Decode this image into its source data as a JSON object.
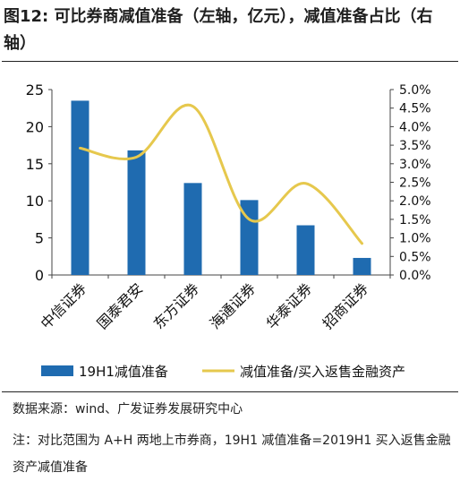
{
  "header": {
    "figure_label": "图12:",
    "title": "可比券商减值准备（左轴，亿元），减值准备占比（右轴）"
  },
  "chart_data": {
    "type": "bar",
    "categories": [
      "中信证券",
      "国泰君安",
      "东方证券",
      "海通证券",
      "华泰证券",
      "招商证券"
    ],
    "series": [
      {
        "name": "19H1减值准备",
        "type": "bar",
        "axis": "left",
        "color": "#1f6bb0",
        "values": [
          23.5,
          16.8,
          12.4,
          10.1,
          6.7,
          2.3
        ]
      },
      {
        "name": "减值准备/买入返售金融资产",
        "type": "line",
        "axis": "right",
        "color": "#e6c84d",
        "values": [
          3.42,
          3.18,
          4.55,
          1.5,
          2.47,
          0.85
        ]
      }
    ],
    "y_left": {
      "ylim": [
        0,
        25
      ],
      "ticks": [
        "0",
        "5",
        "10",
        "15",
        "20",
        "25"
      ]
    },
    "y_right": {
      "ylim": [
        0,
        5.0
      ],
      "ticks": [
        "0.0%",
        "0.5%",
        "1.0%",
        "1.5%",
        "2.0%",
        "2.5%",
        "3.0%",
        "3.5%",
        "4.0%",
        "4.5%",
        "5.0%"
      ]
    },
    "legend": "bottom",
    "grid": false
  },
  "footer": {
    "source": "数据来源：wind、广发证券发展研究中心",
    "note": "注：对比范围为 A+H 两地上市券商，19H1 减值准备=2019H1 买入返售金融资产减值准备"
  }
}
